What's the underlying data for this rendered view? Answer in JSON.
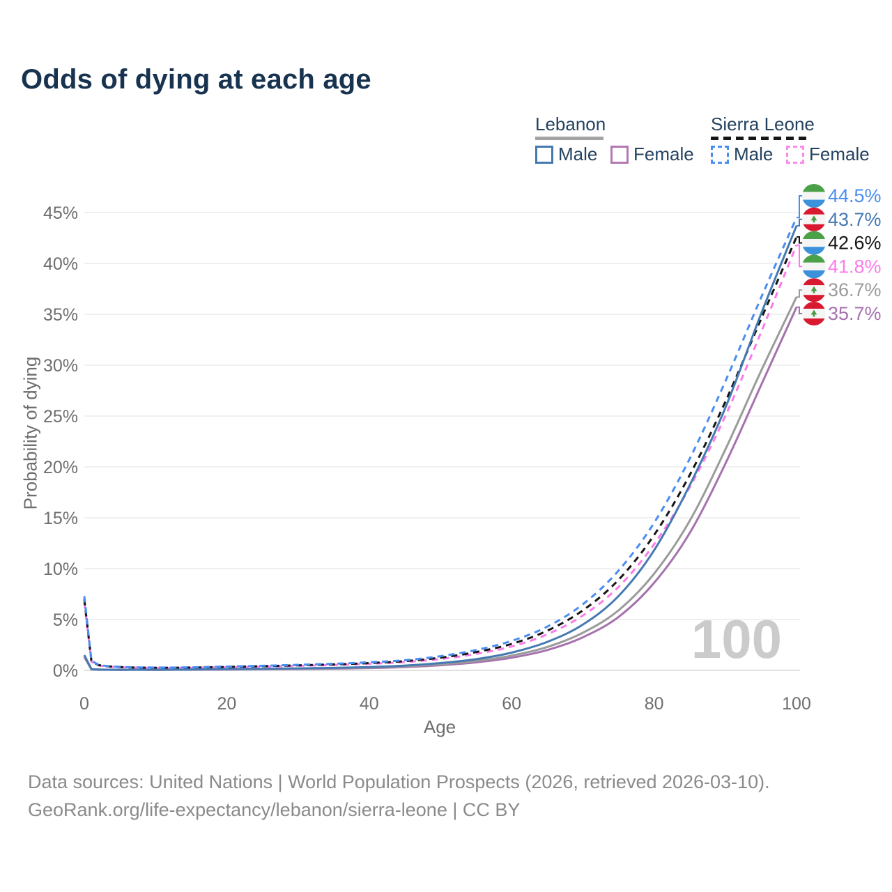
{
  "title": "Odds of dying at each age",
  "legend": {
    "lebanon": {
      "name": "Lebanon",
      "male_label": "Male",
      "female_label": "Female"
    },
    "sierra_leone": {
      "name": "Sierra Leone",
      "male_label": "Male",
      "female_label": "Female"
    }
  },
  "footer": {
    "line1": "Data sources: United Nations | World Population Prospects (2026, retrieved 2026-03-10).",
    "line2": "GeoRank.org/life-expectancy/lebanon/sierra-leone | CC BY"
  },
  "colors": {
    "title_text": "#173350",
    "legend_text": "#24425f",
    "axis_text": "#6e6e6e",
    "grid_line": "#ececec",
    "grid_baseline": "#e0e0e0",
    "watermark": "#cbcbcb",
    "lebanon_male": "#4679b2",
    "lebanon_female": "#a672ae",
    "lebanon_all": "#9b9b9b",
    "sierra_leone_male": "#4a8df2",
    "sierra_leone_female": "#fb7be7",
    "sierra_leone_all": "#161616",
    "flag_sl_green": "#4aa147",
    "flag_sl_blue": "#3b92da",
    "flag_lb_red": "#d8192f",
    "flag_lb_cedar": "#4c9c43"
  },
  "chart_data": {
    "type": "line",
    "title": "Odds of dying at each age",
    "xlabel": "Age",
    "ylabel": "Probability of dying",
    "xlim": [
      0,
      100
    ],
    "ylim": [
      0,
      47
    ],
    "grid": "horizontal-only",
    "legend_position": "top-right",
    "watermark": "100",
    "x_ticks": [
      0,
      20,
      40,
      60,
      80,
      100
    ],
    "y_ticks_percent": [
      0,
      5,
      10,
      15,
      20,
      25,
      30,
      35,
      40,
      45
    ],
    "ages": [
      0,
      1,
      2,
      5,
      10,
      15,
      20,
      25,
      30,
      35,
      40,
      45,
      50,
      55,
      60,
      65,
      70,
      75,
      80,
      85,
      90,
      95,
      100
    ],
    "series": [
      {
        "name": "Sierra Leone Male",
        "country": "Sierra Leone",
        "sex": "Male",
        "flag": "sierra-leone",
        "style": "dashed",
        "color": "#4a8df2",
        "end_label": "44.5%",
        "values": [
          7.3,
          0.95,
          0.55,
          0.35,
          0.28,
          0.3,
          0.38,
          0.45,
          0.55,
          0.65,
          0.8,
          1.0,
          1.4,
          2.0,
          2.9,
          4.3,
          6.5,
          9.8,
          14.5,
          20.8,
          28.4,
          36.6,
          44.5
        ]
      },
      {
        "name": "Lebanon Male",
        "country": "Lebanon",
        "sex": "Male",
        "flag": "lebanon",
        "style": "solid",
        "color": "#4679b2",
        "end_label": "43.7%",
        "values": [
          1.5,
          0.12,
          0.08,
          0.06,
          0.06,
          0.09,
          0.13,
          0.16,
          0.2,
          0.25,
          0.33,
          0.47,
          0.72,
          1.1,
          1.75,
          2.8,
          4.5,
          7.3,
          11.8,
          18.2,
          25.8,
          35.0,
          43.7
        ]
      },
      {
        "name": "Sierra Leone Both sexes",
        "country": "Sierra Leone",
        "sex": "Both",
        "flag": "sierra-leone",
        "style": "dashed",
        "color": "#161616",
        "end_label": "42.6%",
        "values": [
          7.0,
          0.9,
          0.52,
          0.33,
          0.26,
          0.28,
          0.34,
          0.41,
          0.5,
          0.59,
          0.72,
          0.91,
          1.25,
          1.8,
          2.6,
          3.9,
          5.9,
          8.9,
          13.3,
          19.2,
          26.4,
          34.5,
          42.6
        ]
      },
      {
        "name": "Sierra Leone Female",
        "country": "Sierra Leone",
        "sex": "Female",
        "flag": "sierra-leone",
        "style": "dashed",
        "color": "#fb7be7",
        "end_label": "41.8%",
        "values": [
          6.7,
          0.85,
          0.5,
          0.31,
          0.25,
          0.26,
          0.31,
          0.37,
          0.45,
          0.53,
          0.65,
          0.82,
          1.12,
          1.62,
          2.35,
          3.55,
          5.4,
          8.2,
          12.4,
          18.0,
          25.0,
          33.2,
          41.8
        ]
      },
      {
        "name": "Lebanon Both sexes",
        "country": "Lebanon",
        "sex": "Both",
        "flag": "lebanon",
        "style": "solid",
        "color": "#9b9b9b",
        "end_label": "36.7%",
        "values": [
          1.4,
          0.11,
          0.08,
          0.06,
          0.05,
          0.08,
          0.11,
          0.14,
          0.17,
          0.21,
          0.28,
          0.4,
          0.61,
          0.93,
          1.45,
          2.3,
          3.7,
          5.9,
          9.5,
          14.7,
          21.7,
          29.4,
          36.7
        ]
      },
      {
        "name": "Lebanon Female",
        "country": "Lebanon",
        "sex": "Female",
        "flag": "lebanon",
        "style": "solid",
        "color": "#a672ae",
        "end_label": "35.7%",
        "values": [
          1.3,
          0.1,
          0.07,
          0.05,
          0.05,
          0.07,
          0.09,
          0.11,
          0.14,
          0.17,
          0.23,
          0.33,
          0.51,
          0.79,
          1.25,
          2.0,
          3.25,
          5.25,
          8.6,
          13.5,
          20.3,
          28.0,
          35.7
        ]
      }
    ]
  }
}
